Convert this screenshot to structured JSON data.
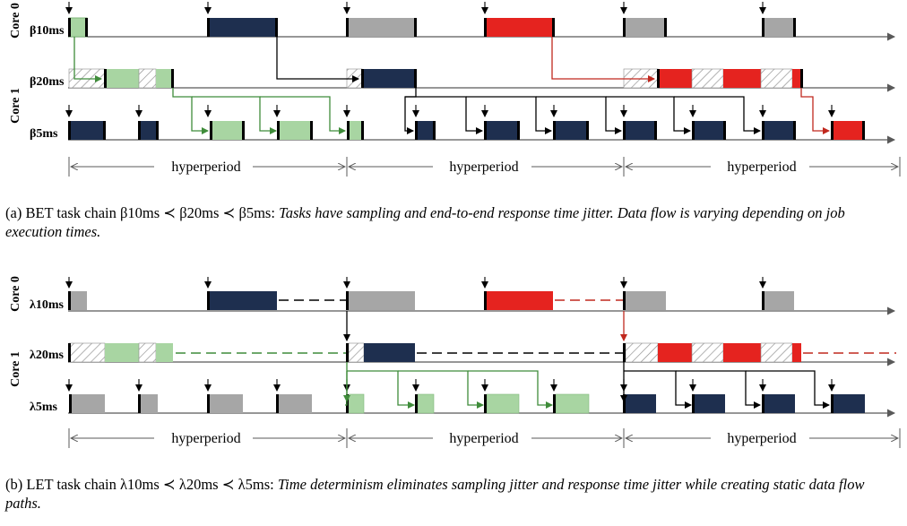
{
  "colors": {
    "navy": "#1e2f4f",
    "red": "#e5231f",
    "green_fill": "#a8d5a2",
    "green_line": "#3f8c3a",
    "grey": "#a6a6a6",
    "dark_red_line": "#c0281e",
    "axis": "#595959"
  },
  "hyperperiod_label": "hyperperiod",
  "panel_a": {
    "core0_label": "Core 0",
    "core1_label": "Core 1",
    "task_10ms": "β10ms",
    "task_20ms": "β20ms",
    "task_5ms": "β5ms",
    "caption_prefix": "(a) BET task chain β10ms ≺ β20ms ≺ β5ms: ",
    "caption_italic": "Tasks have sampling and end-to-end response time jitter. Data flow is varying depending on job execution times."
  },
  "panel_b": {
    "core0_label": "Core 0",
    "core1_label": "Core 1",
    "task_10ms": "λ10ms",
    "task_20ms": "λ20ms",
    "task_5ms": "λ5ms",
    "caption_prefix": "(b) LET task chain λ10ms ≺ λ20ms ≺ λ5ms: ",
    "caption_italic": "Time determinism eliminates sampling jitter and response time jitter while creating static data flow paths."
  }
}
